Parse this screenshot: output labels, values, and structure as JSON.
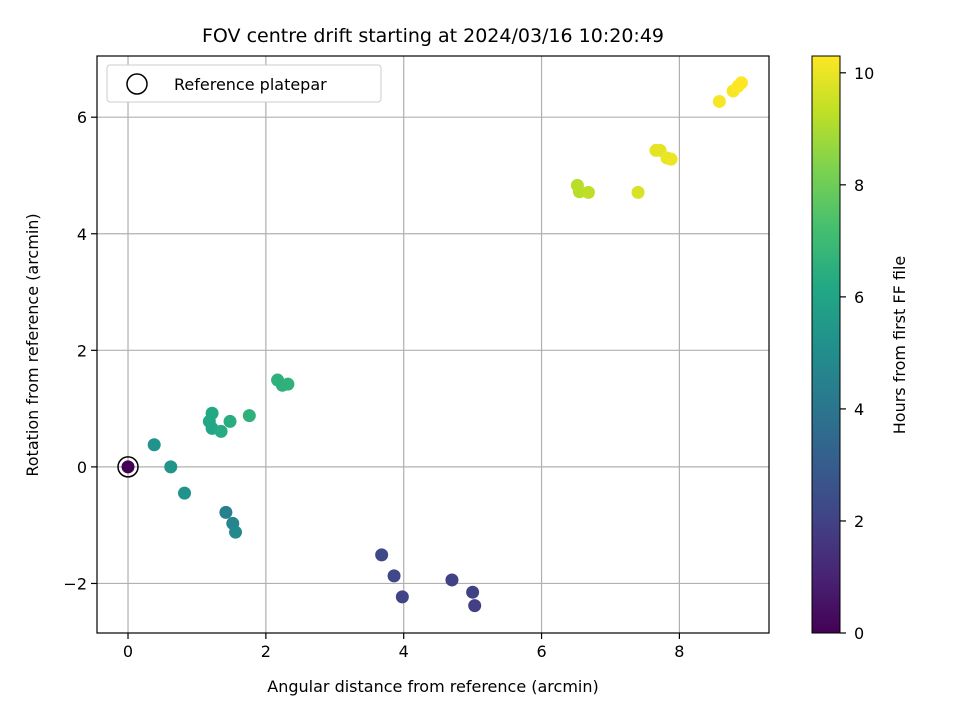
{
  "chart_data": {
    "type": "scatter",
    "title": "FOV centre drift starting at 2024/03/16 10:20:49",
    "xlabel": "Angular distance from reference (arcmin)",
    "ylabel": "Rotation from reference (arcmin)",
    "xlim": [
      -0.45,
      9.3
    ],
    "ylim": [
      -2.85,
      7.05
    ],
    "xticks": [
      0,
      2,
      4,
      6,
      8
    ],
    "xtick_labels": [
      "0",
      "2",
      "4",
      "6",
      "8"
    ],
    "yticks": [
      -2,
      0,
      2,
      4,
      6
    ],
    "ytick_labels": [
      "−2",
      "0",
      "2",
      "4",
      "6"
    ],
    "grid": true,
    "legend": {
      "placement": "top-left",
      "label": "Reference platepar"
    },
    "colorbar": {
      "label": "Hours from first FF file",
      "range": [
        0,
        10.3
      ],
      "ticks": [
        0,
        2,
        4,
        6,
        8,
        10
      ],
      "tick_labels": [
        "0",
        "2",
        "4",
        "6",
        "8",
        "10"
      ],
      "colormap": "viridis"
    },
    "reference_point": {
      "x": 0,
      "y": 0
    },
    "points": [
      {
        "x": 0.0,
        "y": 0.0,
        "t": 0.0
      },
      {
        "x": 3.68,
        "y": -1.51,
        "t": 2.3
      },
      {
        "x": 3.86,
        "y": -1.87,
        "t": 2.2
      },
      {
        "x": 3.98,
        "y": -2.23,
        "t": 2.1
      },
      {
        "x": 4.7,
        "y": -1.94,
        "t": 2.0
      },
      {
        "x": 5.0,
        "y": -2.15,
        "t": 2.0
      },
      {
        "x": 5.03,
        "y": -2.38,
        "t": 1.9
      },
      {
        "x": 1.42,
        "y": -0.78,
        "t": 4.4
      },
      {
        "x": 1.52,
        "y": -0.97,
        "t": 4.6
      },
      {
        "x": 1.56,
        "y": -1.12,
        "t": 4.8
      },
      {
        "x": 0.38,
        "y": 0.38,
        "t": 5.2
      },
      {
        "x": 0.62,
        "y": 0.0,
        "t": 5.3
      },
      {
        "x": 0.82,
        "y": -0.45,
        "t": 5.2
      },
      {
        "x": 1.18,
        "y": 0.78,
        "t": 6.2
      },
      {
        "x": 1.22,
        "y": 0.92,
        "t": 6.2
      },
      {
        "x": 1.22,
        "y": 0.66,
        "t": 6.1
      },
      {
        "x": 1.35,
        "y": 0.61,
        "t": 6.3
      },
      {
        "x": 1.48,
        "y": 0.78,
        "t": 6.4
      },
      {
        "x": 1.76,
        "y": 0.88,
        "t": 6.6
      },
      {
        "x": 2.17,
        "y": 1.49,
        "t": 6.6
      },
      {
        "x": 2.24,
        "y": 1.4,
        "t": 6.5
      },
      {
        "x": 2.32,
        "y": 1.42,
        "t": 6.6
      },
      {
        "x": 6.52,
        "y": 4.83,
        "t": 9.2
      },
      {
        "x": 6.55,
        "y": 4.72,
        "t": 9.2
      },
      {
        "x": 6.68,
        "y": 4.71,
        "t": 9.3
      },
      {
        "x": 7.4,
        "y": 4.71,
        "t": 9.7
      },
      {
        "x": 7.66,
        "y": 5.43,
        "t": 9.9
      },
      {
        "x": 7.72,
        "y": 5.43,
        "t": 9.9
      },
      {
        "x": 7.82,
        "y": 5.3,
        "t": 10.0
      },
      {
        "x": 7.88,
        "y": 5.28,
        "t": 10.0
      },
      {
        "x": 8.58,
        "y": 6.27,
        "t": 10.2
      },
      {
        "x": 8.78,
        "y": 6.45,
        "t": 10.2
      },
      {
        "x": 8.85,
        "y": 6.53,
        "t": 10.3
      },
      {
        "x": 8.9,
        "y": 6.59,
        "t": 10.3
      }
    ]
  }
}
